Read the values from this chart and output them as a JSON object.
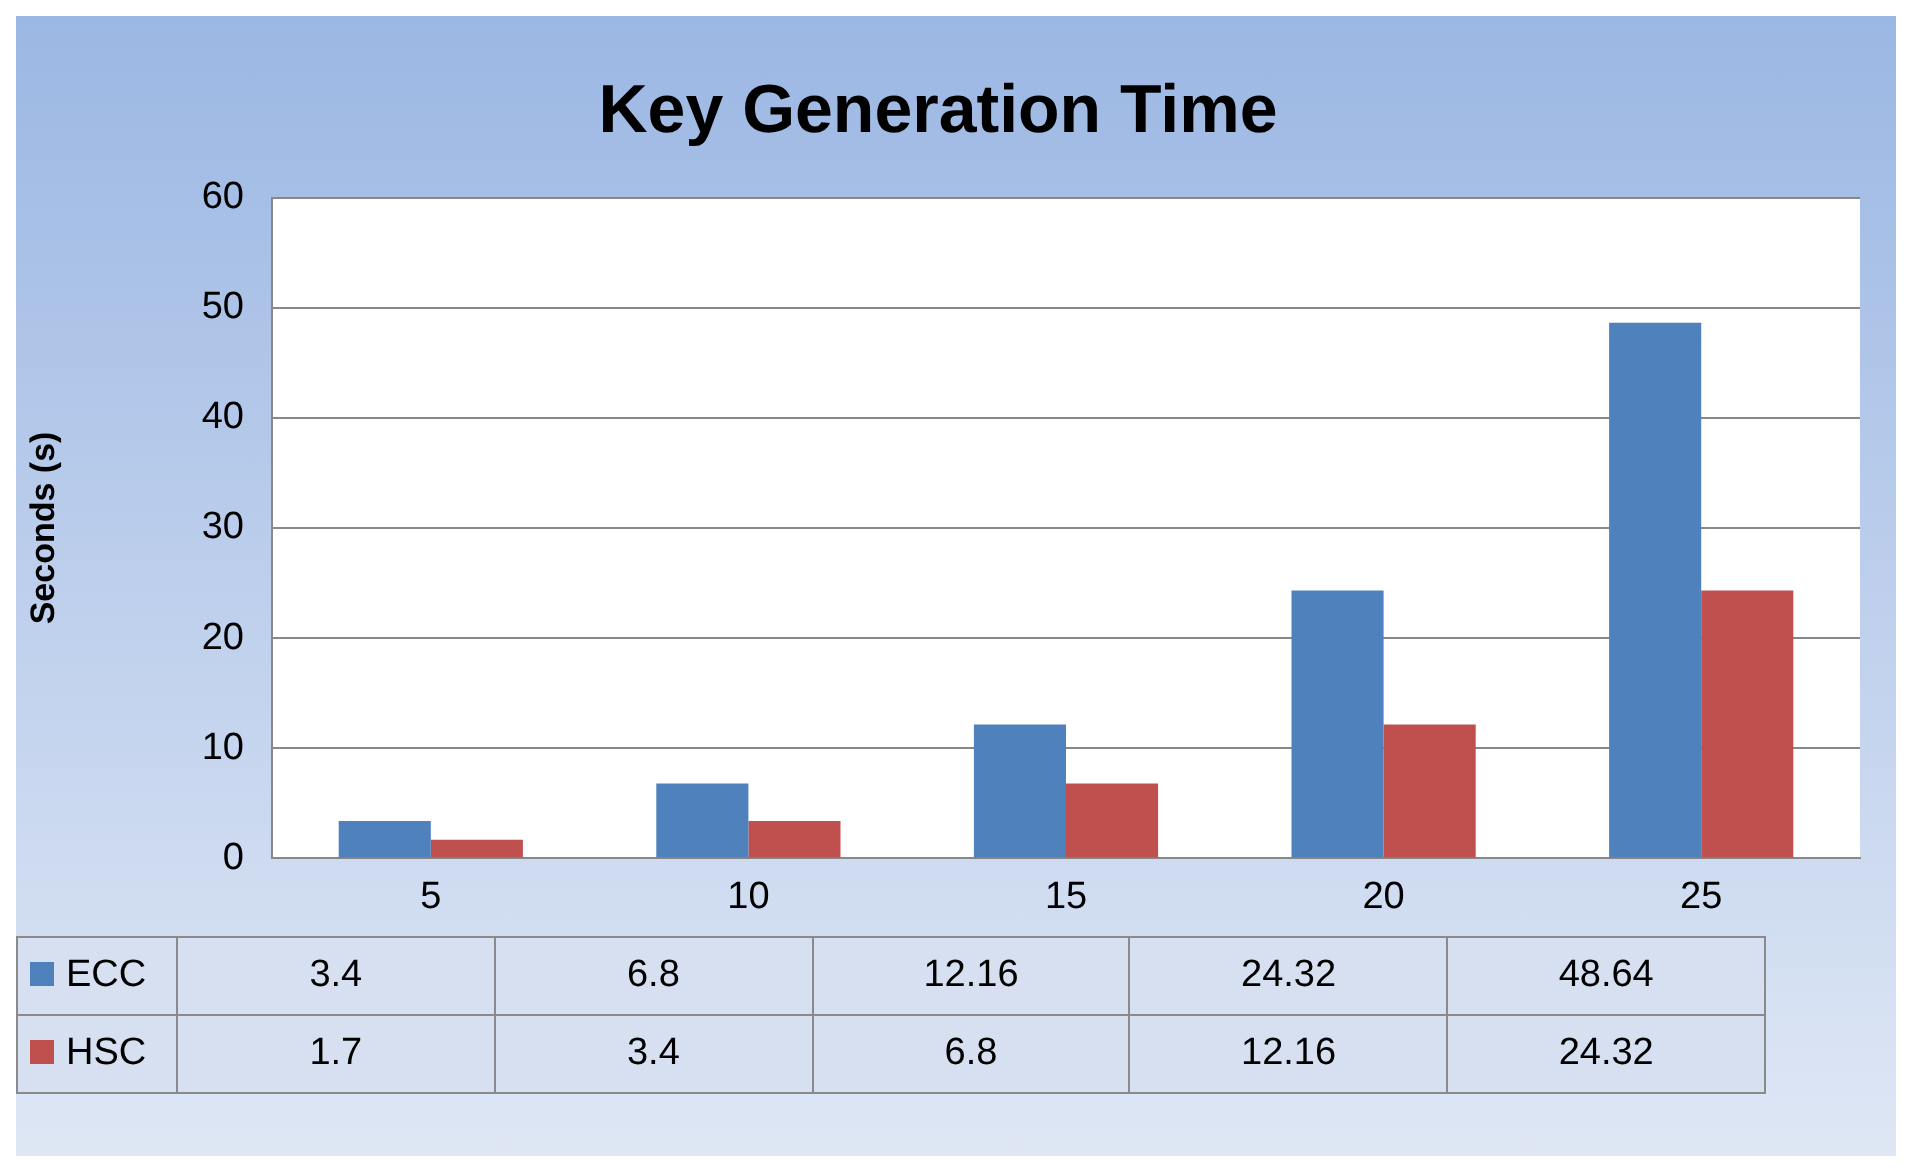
{
  "chart_data": {
    "type": "bar",
    "title": "Key Generation Time",
    "ylabel": "Seconds (s)",
    "categories": [
      "5",
      "10",
      "15",
      "20",
      "25"
    ],
    "series": [
      {
        "name": "ECC",
        "color": "#4f81bd",
        "values": [
          3.4,
          6.8,
          12.16,
          24.32,
          48.64
        ]
      },
      {
        "name": "HSC",
        "color": "#c0504d",
        "values": [
          1.7,
          3.4,
          6.8,
          12.16,
          24.32
        ]
      }
    ],
    "ylim": [
      0,
      60
    ],
    "yticks": [
      0,
      10,
      20,
      30,
      40,
      50,
      60
    ],
    "grid": "y",
    "legend": "bottom",
    "data_labels": true
  }
}
